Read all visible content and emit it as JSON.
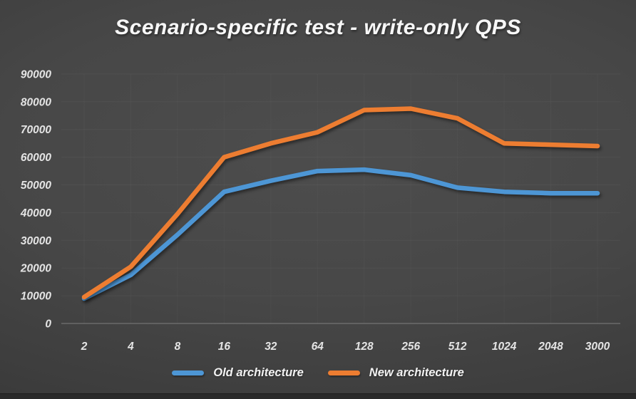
{
  "title": "Scenario-specific test - write-only QPS",
  "colors": {
    "background_center": "#4d4d4d",
    "background_edge": "#2e2e2e",
    "axis_text": "#e4e4e4",
    "baseline": "#9a9a9a",
    "gridline": "#ffffff",
    "old_architecture": "#4d96d5",
    "new_architecture": "#ed7d31",
    "title_text": "#f7f7f7",
    "bottom_bar": "#2a2a2a"
  },
  "chart_data": {
    "type": "line",
    "title": "Scenario-specific test - write-only QPS",
    "xlabel": "",
    "ylabel": "",
    "categories": [
      "2",
      "4",
      "8",
      "16",
      "32",
      "64",
      "128",
      "256",
      "512",
      "1024",
      "2048",
      "3000"
    ],
    "series": [
      {
        "name": "Old architecture",
        "color_key": "old_architecture",
        "values": [
          9000,
          17500,
          32000,
          47500,
          51500,
          55000,
          55500,
          53500,
          49000,
          47500,
          47000,
          47000
        ]
      },
      {
        "name": "New architecture",
        "color_key": "new_architecture",
        "values": [
          9500,
          20500,
          39500,
          60000,
          65000,
          69000,
          77000,
          77500,
          74000,
          65000,
          64500,
          64000
        ]
      }
    ],
    "ylim": [
      0,
      90000
    ],
    "ytick_step": 10000,
    "ytick_labels": [
      "0",
      "10000",
      "20000",
      "30000",
      "40000",
      "50000",
      "60000",
      "70000",
      "80000",
      "90000"
    ],
    "grid": "faint horizontal and vertical",
    "legend_position": "bottom-center"
  }
}
